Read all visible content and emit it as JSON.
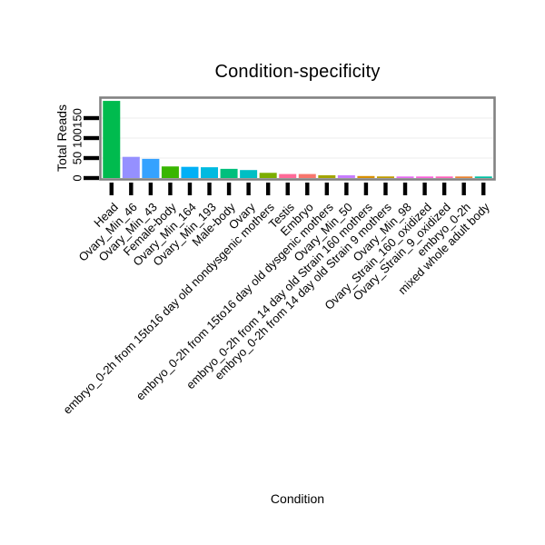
{
  "chart_data": {
    "type": "bar",
    "title": "Condition-specificity",
    "xlabel": "Condition",
    "ylabel": "Total Reads",
    "ylim": [
      0,
      200
    ],
    "yticks": [
      0,
      50,
      100,
      150
    ],
    "grid": "faint light-gray horizontal gridlines at y ticks",
    "legend_position": "none",
    "categories": [
      "Head",
      "Ovary_Min_46",
      "Ovary_Min_43",
      "Female-body",
      "Ovary_Min_164",
      "Ovary_Min_193",
      "Male-body",
      "Ovary",
      "embryo_0-2h from 15to16 day old nondysgenic mothers",
      "Testis",
      "Embryo",
      "embryo_0-2h from 15to16 day old dysgenic mothers",
      "Ovary_Min_50",
      "embryo_0-2h from 14 day old Strain 160 mothers",
      "embryo_0-2h from 14 day old Strain 9 mothers",
      "Ovary_Min_98",
      "Ovary_Strain_160_oxidized",
      "Ovary_Strain_9_oxidized",
      "embryo_0-2h",
      "mixed whole adult body"
    ],
    "values": [
      193,
      53,
      48,
      29,
      28,
      27,
      23,
      20,
      13,
      10,
      10,
      7,
      7,
      5,
      4,
      1,
      1,
      1,
      2,
      2
    ],
    "colors": [
      "#00BB4E",
      "#9590FF",
      "#35A2FF",
      "#39B600",
      "#00B0F6",
      "#00BAE0",
      "#00BF7D",
      "#00BFC4",
      "#7CAE00",
      "#FF6A98",
      "#F8766D",
      "#A3A500",
      "#C77CFF",
      "#D89000",
      "#C09B00",
      "#E76BF3",
      "#FA62DB",
      "#FF62BC",
      "#EA8331",
      "#00C1A3"
    ]
  },
  "style_colors": {
    "plot_border": "#828282",
    "tick_mark": "#000000",
    "gridline": "#f0f0f0",
    "background": "#ffffff",
    "text": "#000000"
  }
}
